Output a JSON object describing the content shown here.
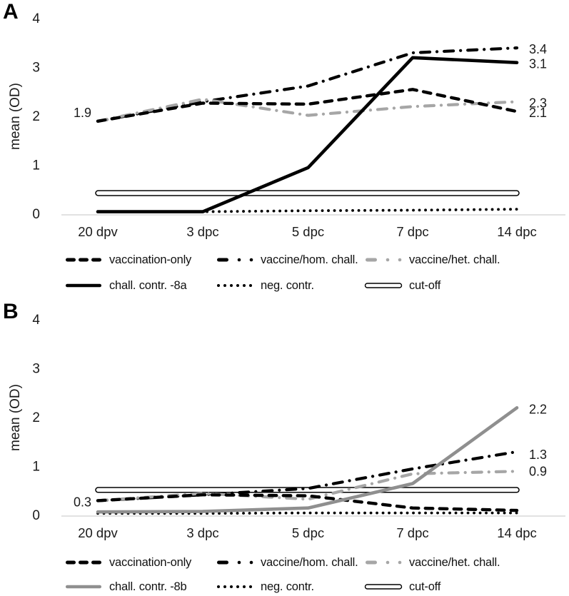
{
  "chart_data": [
    {
      "type": "line",
      "panel_label": "A",
      "ylabel": "mean (OD)",
      "categories": [
        "20 dpv",
        "3 dpc",
        "5 dpc",
        "7 dpc",
        "14 dpc"
      ],
      "ylim": [
        0,
        4
      ],
      "yticks": [
        0,
        1,
        2,
        3,
        4
      ],
      "grid": false,
      "legend_position": "below",
      "series": [
        {
          "name": "vaccination-only",
          "style": "dashed",
          "color": "#000000",
          "values": [
            1.9,
            2.27,
            2.25,
            2.55,
            2.1
          ]
        },
        {
          "name": "vaccine/hom. chall.",
          "style": "dashdot",
          "color": "#000000",
          "values": [
            1.9,
            2.3,
            2.62,
            3.3,
            3.4
          ]
        },
        {
          "name": "vaccine/het. chall.",
          "style": "dashdot",
          "color": "#a6a6a6",
          "values": [
            1.9,
            2.35,
            2.02,
            2.2,
            2.3
          ]
        },
        {
          "name": "chall. contr. -8a",
          "style": "solid",
          "color": "#000000",
          "values": [
            0.05,
            0.05,
            0.95,
            3.2,
            3.1
          ]
        },
        {
          "name": "neg. contr.",
          "style": "dotted",
          "color": "#000000",
          "values": [
            0.05,
            0.05,
            0.07,
            0.08,
            0.1
          ]
        },
        {
          "name": "cut-off",
          "style": "cutoff",
          "color": "#000000",
          "values": [
            0.43,
            0.43,
            0.43,
            0.43,
            0.43
          ]
        }
      ],
      "point_labels": [
        {
          "text": "1.9",
          "x_index": 0,
          "value": 1.9,
          "side": "left",
          "dy": -12
        },
        {
          "text": "3.4",
          "x_index": 4,
          "value": 3.4,
          "side": "right",
          "dy": 2
        },
        {
          "text": "3.1",
          "x_index": 4,
          "value": 3.1,
          "side": "right",
          "dy": 2
        },
        {
          "text": "2.3",
          "x_index": 4,
          "value": 2.3,
          "side": "right",
          "dy": 2
        },
        {
          "text": "2.1",
          "x_index": 4,
          "value": 2.1,
          "side": "right",
          "dy": 2
        }
      ]
    },
    {
      "type": "line",
      "panel_label": "B",
      "ylabel": "mean (OD)",
      "categories": [
        "20 dpv",
        "3 dpc",
        "5 dpc",
        "7 dpc",
        "14 dpc"
      ],
      "ylim": [
        0,
        4
      ],
      "yticks": [
        0,
        1,
        2,
        3,
        4
      ],
      "grid": false,
      "legend_position": "below",
      "series": [
        {
          "name": "vaccination-only",
          "style": "dashed",
          "color": "#000000",
          "values": [
            0.3,
            0.42,
            0.4,
            0.15,
            0.1
          ]
        },
        {
          "name": "vaccine/hom. chall.",
          "style": "dashdot",
          "color": "#000000",
          "values": [
            0.3,
            0.42,
            0.55,
            0.95,
            1.3
          ]
        },
        {
          "name": "vaccine/het. chall.",
          "style": "dashdot",
          "color": "#a6a6a6",
          "values": [
            0.3,
            0.45,
            0.33,
            0.85,
            0.9
          ]
        },
        {
          "name": "chall. contr. -8b",
          "style": "solid",
          "color": "#8f8f8f",
          "values": [
            0.07,
            0.08,
            0.15,
            0.65,
            2.2
          ]
        },
        {
          "name": "neg. contr.",
          "style": "dotted",
          "color": "#000000",
          "values": [
            0.04,
            0.04,
            0.05,
            0.05,
            0.05
          ]
        },
        {
          "name": "cut-off",
          "style": "cutoff",
          "color": "#000000",
          "values": [
            0.52,
            0.52,
            0.52,
            0.52,
            0.52
          ]
        }
      ],
      "point_labels": [
        {
          "text": "0.3",
          "x_index": 0,
          "value": 0.3,
          "side": "left",
          "dy": 2
        },
        {
          "text": "2.2",
          "x_index": 4,
          "value": 2.2,
          "side": "right",
          "dy": 2
        },
        {
          "text": "1.3",
          "x_index": 4,
          "value": 1.3,
          "side": "right",
          "dy": 4
        },
        {
          "text": "0.9",
          "x_index": 4,
          "value": 0.9,
          "side": "right",
          "dy": 0
        }
      ]
    }
  ]
}
